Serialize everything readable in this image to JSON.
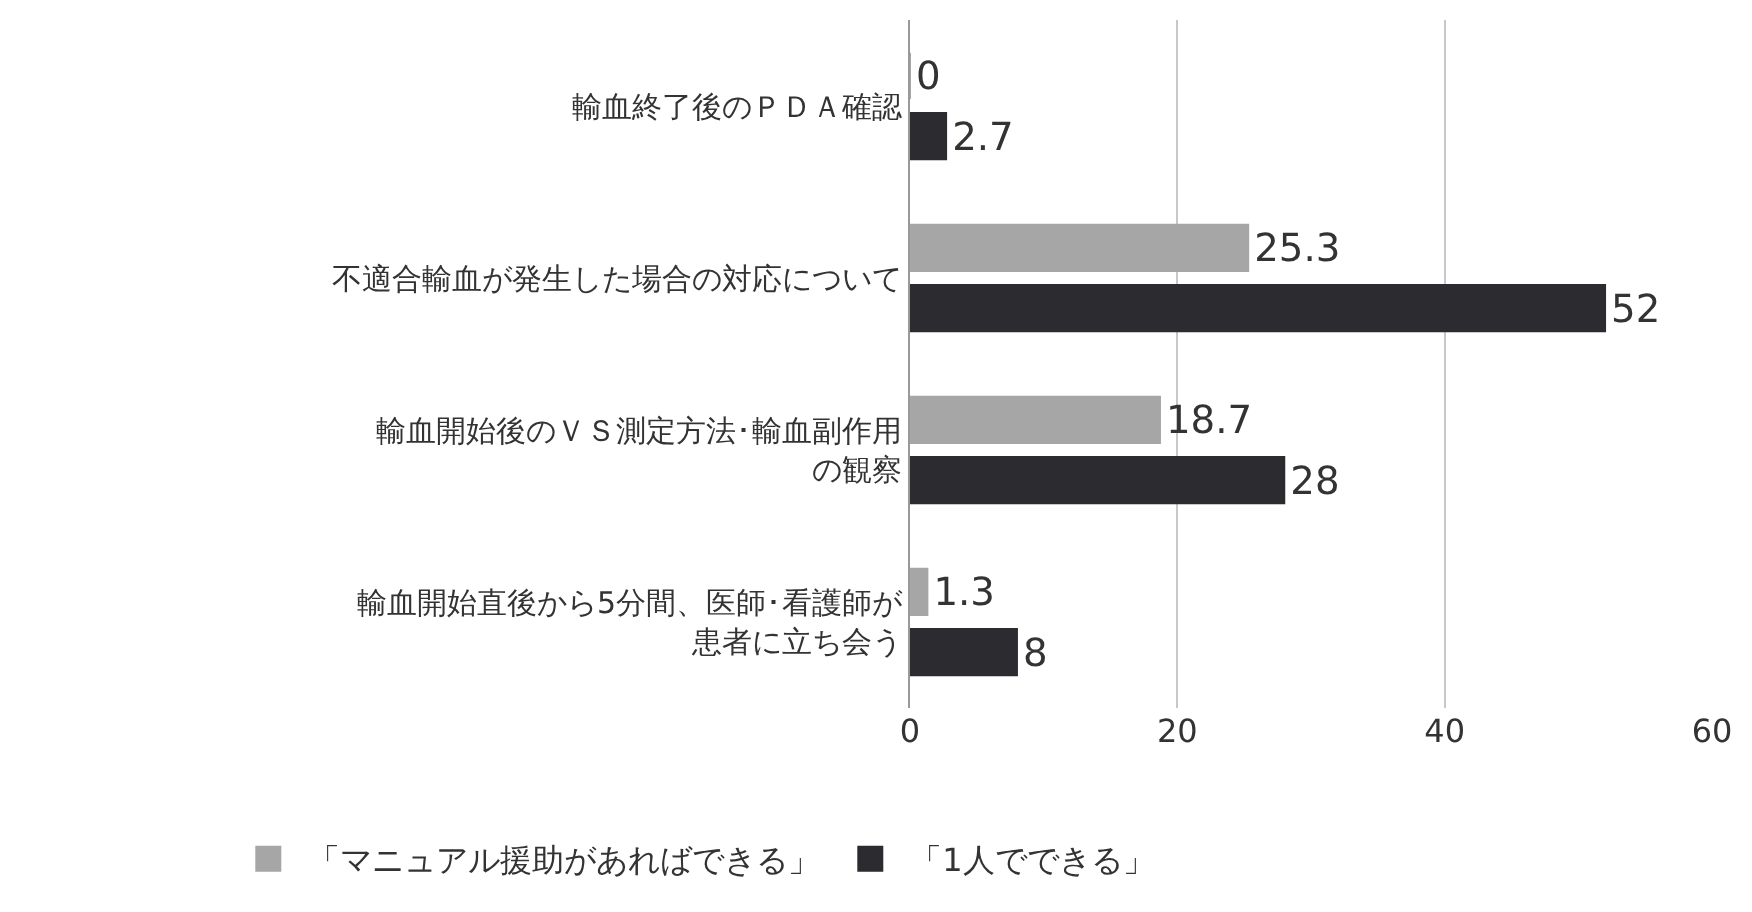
{
  "chart_data": {
    "type": "bar",
    "orientation": "horizontal",
    "categories": [
      "輸血終了後のＰＤＡ確認",
      "不適合輸血が発生した場合の対応について",
      "輸血開始後のＶＳ測定方法･輸血副作用の観察",
      "輸血開始直後から5分間、医師･看護師が患者に立ち会う"
    ],
    "series": [
      {
        "name": "「マニュアル援助があればできる」",
        "color": "#a6a6a6",
        "values": [
          0,
          25.3,
          18.7,
          1.3
        ]
      },
      {
        "name": "「1人でできる」",
        "color": "#2b2b30",
        "values": [
          2.7,
          52,
          28,
          8
        ]
      }
    ],
    "xlim": [
      0,
      60
    ],
    "xticks": [
      0,
      20,
      40,
      60
    ],
    "grid": "x",
    "legend": "bottom",
    "data_labels": true
  }
}
